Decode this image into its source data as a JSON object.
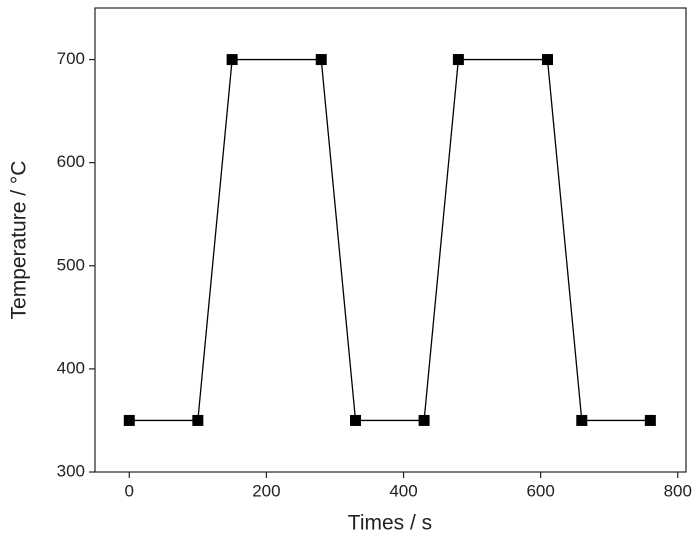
{
  "chart_data": {
    "type": "line",
    "x_label": "Times / s",
    "y_label": "Temperature / °C",
    "x": [
      0,
      100,
      150,
      280,
      330,
      430,
      480,
      610,
      660,
      760
    ],
    "series": [
      {
        "color": "#000000",
        "values": [
          350,
          350,
          700,
          700,
          350,
          350,
          700,
          700,
          350,
          350
        ]
      }
    ],
    "xlim": [
      -50,
      812
    ],
    "xticks": [
      0,
      200,
      400,
      600,
      800
    ],
    "ylim": [
      300,
      750
    ],
    "yticks": [
      300,
      400,
      500,
      600,
      700
    ]
  }
}
